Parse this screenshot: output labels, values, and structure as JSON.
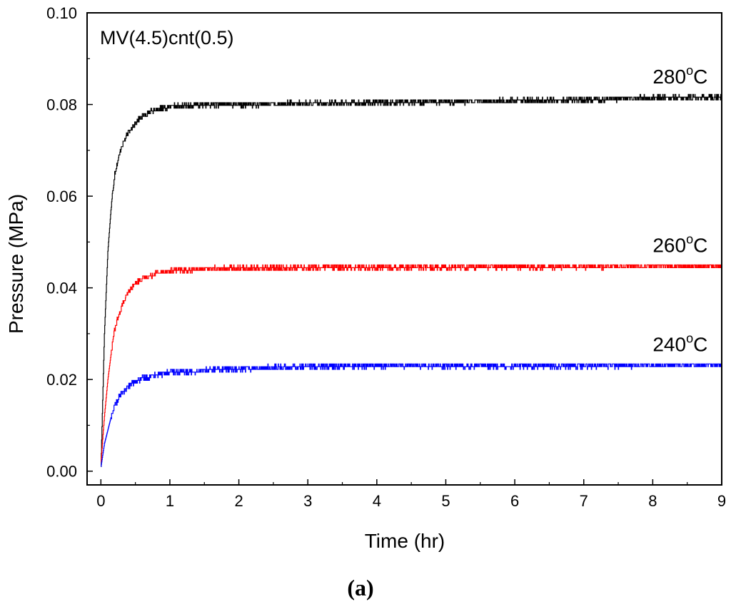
{
  "chart_data": {
    "type": "line",
    "title": "",
    "annotation": "MV(4.5)cnt(0.5)",
    "caption": "a",
    "xlabel": "Time (hr)",
    "ylabel": "Pressure (MPa)",
    "xlim": [
      -0.2,
      9
    ],
    "ylim": [
      -0.003,
      0.1
    ],
    "x_ticks": [
      0,
      1,
      2,
      3,
      4,
      5,
      6,
      7,
      8,
      9
    ],
    "x_tick_labels": [
      "0",
      "1",
      "2",
      "3",
      "4",
      "5",
      "6",
      "7",
      "8",
      "9"
    ],
    "y_ticks": [
      0.0,
      0.02,
      0.04,
      0.06,
      0.08,
      0.1
    ],
    "y_tick_labels": [
      "0.00",
      "0.02",
      "0.04",
      "0.06",
      "0.08",
      "0.10"
    ],
    "series": [
      {
        "name": "280°C",
        "label_main": "280",
        "label_sup": "o",
        "label_unit": "C",
        "color": "#000000",
        "x": [
          0,
          0.05,
          0.1,
          0.15,
          0.2,
          0.3,
          0.4,
          0.5,
          0.6,
          0.8,
          1.0,
          1.5,
          2,
          3,
          4,
          5,
          6,
          7,
          8,
          9
        ],
        "values": [
          0.001,
          0.03,
          0.048,
          0.058,
          0.065,
          0.071,
          0.074,
          0.076,
          0.0775,
          0.079,
          0.0795,
          0.08,
          0.08,
          0.0802,
          0.0804,
          0.0806,
          0.0808,
          0.081,
          0.0815,
          0.0815
        ]
      },
      {
        "name": "260°C",
        "label_main": "260",
        "label_sup": "o",
        "label_unit": "C",
        "color": "#ff0000",
        "x": [
          0,
          0.05,
          0.1,
          0.15,
          0.2,
          0.3,
          0.4,
          0.5,
          0.6,
          0.8,
          1.0,
          1.5,
          2,
          3,
          4,
          5,
          6,
          7,
          8,
          9
        ],
        "values": [
          0.002,
          0.012,
          0.02,
          0.026,
          0.031,
          0.036,
          0.039,
          0.041,
          0.042,
          0.0432,
          0.0437,
          0.0441,
          0.0443,
          0.0444,
          0.0445,
          0.0445,
          0.0446,
          0.0446,
          0.0447,
          0.0447
        ]
      },
      {
        "name": "240°C",
        "label_main": "240",
        "label_sup": "o",
        "label_unit": "C",
        "color": "#0000ff",
        "x": [
          0,
          0.05,
          0.1,
          0.15,
          0.2,
          0.3,
          0.4,
          0.5,
          0.6,
          0.8,
          1.0,
          1.5,
          2,
          3,
          4,
          5,
          6,
          7,
          8,
          9
        ],
        "values": [
          0.001,
          0.006,
          0.009,
          0.012,
          0.0145,
          0.017,
          0.0185,
          0.0195,
          0.0202,
          0.021,
          0.0215,
          0.022,
          0.0224,
          0.0228,
          0.023,
          0.023,
          0.023,
          0.023,
          0.0231,
          0.0231
        ]
      }
    ]
  }
}
